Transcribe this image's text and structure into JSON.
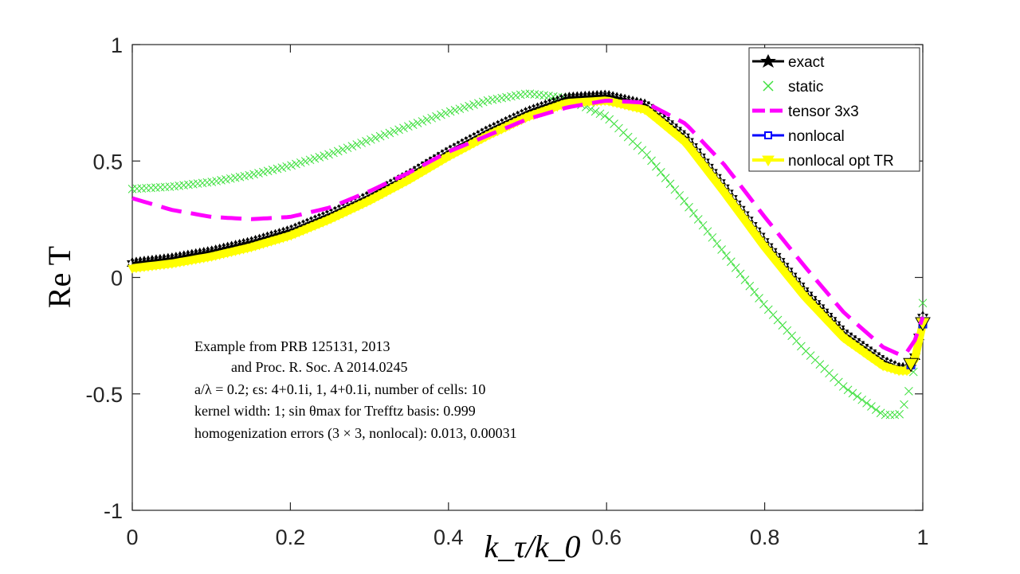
{
  "chart_data": {
    "type": "line",
    "xlabel": "k_τ/k_0",
    "ylabel": "Re T",
    "xlim": [
      0,
      1
    ],
    "ylim": [
      -1,
      1
    ],
    "xticks": [
      "0",
      "0.2",
      "0.4",
      "0.6",
      "0.8",
      "1"
    ],
    "yticks": [
      "1",
      "0.5",
      "0",
      "-0.5",
      "-1"
    ],
    "grid": false,
    "legend_location": "top-right",
    "series": [
      {
        "name": "exact",
        "color": "#000000",
        "style": "solid line with hexagram markers",
        "x": [
          0,
          0.05,
          0.1,
          0.15,
          0.2,
          0.25,
          0.3,
          0.35,
          0.4,
          0.45,
          0.5,
          0.55,
          0.6,
          0.65,
          0.7,
          0.75,
          0.8,
          0.85,
          0.9,
          0.95,
          0.97,
          0.98,
          0.99,
          1.0
        ],
        "y": [
          0.06,
          0.08,
          0.11,
          0.15,
          0.2,
          0.27,
          0.35,
          0.44,
          0.54,
          0.63,
          0.71,
          0.77,
          0.78,
          0.74,
          0.6,
          0.38,
          0.15,
          -0.06,
          -0.24,
          -0.36,
          -0.39,
          -0.39,
          -0.34,
          -0.17
        ]
      },
      {
        "name": "static",
        "color": "#3ee03e",
        "style": "x markers",
        "x": [
          0,
          0.05,
          0.1,
          0.15,
          0.2,
          0.25,
          0.3,
          0.35,
          0.4,
          0.45,
          0.5,
          0.55,
          0.6,
          0.65,
          0.7,
          0.75,
          0.8,
          0.85,
          0.9,
          0.95,
          0.97,
          0.98,
          0.99,
          1.0
        ],
        "y": [
          0.38,
          0.39,
          0.41,
          0.44,
          0.48,
          0.53,
          0.59,
          0.65,
          0.71,
          0.76,
          0.79,
          0.77,
          0.69,
          0.53,
          0.32,
          0.1,
          -0.12,
          -0.31,
          -0.47,
          -0.59,
          -0.59,
          -0.52,
          -0.38,
          -0.11
        ]
      },
      {
        "name": "tensor 3x3",
        "color": "#ff00ff",
        "style": "dashed line",
        "x": [
          0,
          0.05,
          0.1,
          0.15,
          0.2,
          0.25,
          0.3,
          0.35,
          0.4,
          0.45,
          0.5,
          0.55,
          0.6,
          0.65,
          0.7,
          0.75,
          0.8,
          0.85,
          0.9,
          0.95,
          0.97,
          0.98,
          0.99,
          1.0
        ],
        "y": [
          0.34,
          0.29,
          0.26,
          0.25,
          0.26,
          0.3,
          0.37,
          0.45,
          0.54,
          0.61,
          0.68,
          0.73,
          0.76,
          0.75,
          0.66,
          0.48,
          0.26,
          0.05,
          -0.15,
          -0.3,
          -0.33,
          -0.32,
          -0.27,
          -0.17
        ]
      },
      {
        "name": "nonlocal",
        "color": "#0000ff",
        "style": "solid line with square markers",
        "x": [
          0,
          0.05,
          0.1,
          0.15,
          0.2,
          0.25,
          0.3,
          0.35,
          0.4,
          0.45,
          0.5,
          0.55,
          0.6,
          0.65,
          0.7,
          0.75,
          0.8,
          0.85,
          0.9,
          0.95,
          0.97,
          0.98,
          0.99,
          1.0
        ],
        "y": [
          0.05,
          0.07,
          0.1,
          0.14,
          0.19,
          0.26,
          0.34,
          0.43,
          0.53,
          0.62,
          0.7,
          0.76,
          0.77,
          0.73,
          0.59,
          0.37,
          0.14,
          -0.07,
          -0.25,
          -0.37,
          -0.39,
          -0.39,
          -0.34,
          -0.18
        ]
      },
      {
        "name": "nonlocal opt TR",
        "color": "#ffff00",
        "style": "thick solid line with down-triangle markers",
        "x": [
          0,
          0.05,
          0.1,
          0.15,
          0.2,
          0.25,
          0.3,
          0.35,
          0.4,
          0.45,
          0.5,
          0.55,
          0.6,
          0.65,
          0.7,
          0.75,
          0.8,
          0.85,
          0.9,
          0.95,
          0.97,
          0.98,
          0.99,
          1.0
        ],
        "y": [
          0.04,
          0.06,
          0.09,
          0.13,
          0.18,
          0.25,
          0.33,
          0.42,
          0.52,
          0.61,
          0.69,
          0.75,
          0.76,
          0.72,
          0.58,
          0.36,
          0.13,
          -0.08,
          -0.26,
          -0.38,
          -0.4,
          -0.4,
          -0.35,
          -0.2
        ]
      }
    ],
    "annotations": [
      "Example from PRB 125131, 2013",
      "and Proc. R. Soc. A 2014.0245",
      "a/λ = 0.2; ϵs: 4+0.1i, 1, 4+0.1i, number of cells: 10",
      "kernel width: 1; sin θmax for Trefftz basis: 0.999",
      "homogenization errors (3 × 3, nonlocal): 0.013, 0.00031"
    ]
  }
}
